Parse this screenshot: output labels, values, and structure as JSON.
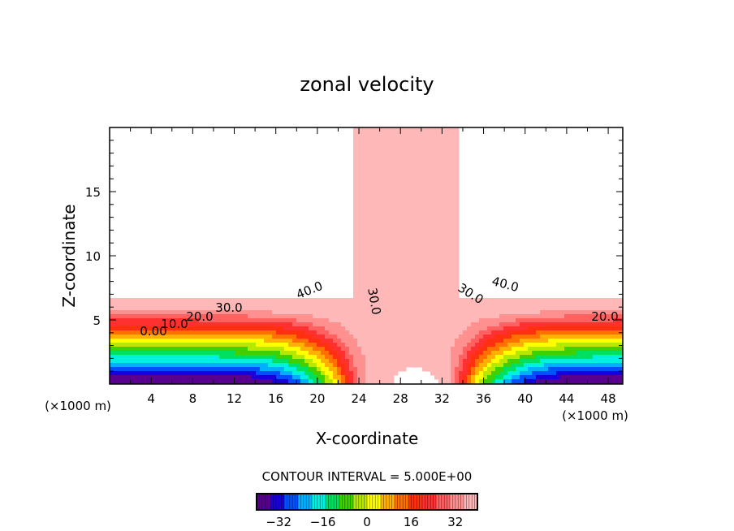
{
  "chart_data": {
    "type": "heatmap",
    "subtype": "filled-contour",
    "title": "zonal velocity",
    "xlabel": "X-coordinate",
    "ylabel": "Z-coordinate",
    "x_unit_left": "(×1000 m)",
    "x_unit_right": "(×1000 m)",
    "xlim": [
      0,
      49.4
    ],
    "ylim": [
      0,
      20
    ],
    "x_ticks": [
      4,
      8,
      12,
      16,
      20,
      24,
      28,
      32,
      36,
      40,
      44,
      48
    ],
    "y_ticks": [
      5,
      10,
      15
    ],
    "contour_interval_text": "CONTOUR INTERVAL = 5.000E+00",
    "contour_interval": 5,
    "levels_range": [
      -40,
      40
    ],
    "contour_labels": [
      "40.0",
      "30.0",
      "30.0",
      "20.0",
      "10.0",
      "0.00",
      "30.0",
      "40.0",
      "20.0"
    ],
    "colorbar": {
      "ticks": [
        -32,
        -16,
        0,
        16,
        32
      ],
      "range": [
        -40,
        40
      ],
      "colors": [
        "#5a0090",
        "#1a00d8",
        "#0050ff",
        "#00b0ff",
        "#00f0e0",
        "#00e060",
        "#40d000",
        "#b8e800",
        "#ffff00",
        "#ffb000",
        "#ff7000",
        "#ff3010",
        "#ff3030",
        "#ff6060",
        "#ff9090",
        "#ffb8b8"
      ]
    },
    "features": "negative lows at bottom corners, jet column near x=22-34 with 30-40 values, values exceeding 45 above z=6.7"
  }
}
